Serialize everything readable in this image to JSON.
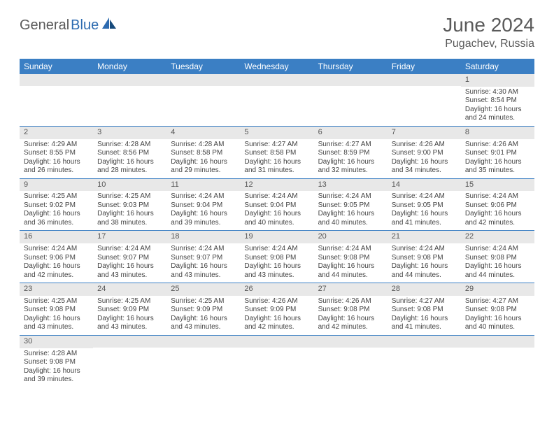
{
  "logo": {
    "text1": "General",
    "text2": "Blue"
  },
  "title": "June 2024",
  "location": "Pugachev, Russia",
  "colors": {
    "header_bg": "#3b7fc4",
    "header_text": "#ffffff",
    "daynum_bg": "#e8e8e8",
    "week_border": "#3b7fc4",
    "text": "#444444",
    "title_text": "#5a5a5a",
    "logo_blue": "#2d6bb0"
  },
  "dayNames": [
    "Sunday",
    "Monday",
    "Tuesday",
    "Wednesday",
    "Thursday",
    "Friday",
    "Saturday"
  ],
  "weeks": [
    [
      {
        "empty": true
      },
      {
        "empty": true
      },
      {
        "empty": true
      },
      {
        "empty": true
      },
      {
        "empty": true
      },
      {
        "empty": true
      },
      {
        "day": "1",
        "sunrise": "4:30 AM",
        "sunset": "8:54 PM",
        "daylight": "16 hours and 24 minutes."
      }
    ],
    [
      {
        "day": "2",
        "sunrise": "4:29 AM",
        "sunset": "8:55 PM",
        "daylight": "16 hours and 26 minutes."
      },
      {
        "day": "3",
        "sunrise": "4:28 AM",
        "sunset": "8:56 PM",
        "daylight": "16 hours and 28 minutes."
      },
      {
        "day": "4",
        "sunrise": "4:28 AM",
        "sunset": "8:58 PM",
        "daylight": "16 hours and 29 minutes."
      },
      {
        "day": "5",
        "sunrise": "4:27 AM",
        "sunset": "8:58 PM",
        "daylight": "16 hours and 31 minutes."
      },
      {
        "day": "6",
        "sunrise": "4:27 AM",
        "sunset": "8:59 PM",
        "daylight": "16 hours and 32 minutes."
      },
      {
        "day": "7",
        "sunrise": "4:26 AM",
        "sunset": "9:00 PM",
        "daylight": "16 hours and 34 minutes."
      },
      {
        "day": "8",
        "sunrise": "4:26 AM",
        "sunset": "9:01 PM",
        "daylight": "16 hours and 35 minutes."
      }
    ],
    [
      {
        "day": "9",
        "sunrise": "4:25 AM",
        "sunset": "9:02 PM",
        "daylight": "16 hours and 36 minutes."
      },
      {
        "day": "10",
        "sunrise": "4:25 AM",
        "sunset": "9:03 PM",
        "daylight": "16 hours and 38 minutes."
      },
      {
        "day": "11",
        "sunrise": "4:24 AM",
        "sunset": "9:04 PM",
        "daylight": "16 hours and 39 minutes."
      },
      {
        "day": "12",
        "sunrise": "4:24 AM",
        "sunset": "9:04 PM",
        "daylight": "16 hours and 40 minutes."
      },
      {
        "day": "13",
        "sunrise": "4:24 AM",
        "sunset": "9:05 PM",
        "daylight": "16 hours and 40 minutes."
      },
      {
        "day": "14",
        "sunrise": "4:24 AM",
        "sunset": "9:05 PM",
        "daylight": "16 hours and 41 minutes."
      },
      {
        "day": "15",
        "sunrise": "4:24 AM",
        "sunset": "9:06 PM",
        "daylight": "16 hours and 42 minutes."
      }
    ],
    [
      {
        "day": "16",
        "sunrise": "4:24 AM",
        "sunset": "9:06 PM",
        "daylight": "16 hours and 42 minutes."
      },
      {
        "day": "17",
        "sunrise": "4:24 AM",
        "sunset": "9:07 PM",
        "daylight": "16 hours and 43 minutes."
      },
      {
        "day": "18",
        "sunrise": "4:24 AM",
        "sunset": "9:07 PM",
        "daylight": "16 hours and 43 minutes."
      },
      {
        "day": "19",
        "sunrise": "4:24 AM",
        "sunset": "9:08 PM",
        "daylight": "16 hours and 43 minutes."
      },
      {
        "day": "20",
        "sunrise": "4:24 AM",
        "sunset": "9:08 PM",
        "daylight": "16 hours and 44 minutes."
      },
      {
        "day": "21",
        "sunrise": "4:24 AM",
        "sunset": "9:08 PM",
        "daylight": "16 hours and 44 minutes."
      },
      {
        "day": "22",
        "sunrise": "4:24 AM",
        "sunset": "9:08 PM",
        "daylight": "16 hours and 44 minutes."
      }
    ],
    [
      {
        "day": "23",
        "sunrise": "4:25 AM",
        "sunset": "9:08 PM",
        "daylight": "16 hours and 43 minutes."
      },
      {
        "day": "24",
        "sunrise": "4:25 AM",
        "sunset": "9:09 PM",
        "daylight": "16 hours and 43 minutes."
      },
      {
        "day": "25",
        "sunrise": "4:25 AM",
        "sunset": "9:09 PM",
        "daylight": "16 hours and 43 minutes."
      },
      {
        "day": "26",
        "sunrise": "4:26 AM",
        "sunset": "9:09 PM",
        "daylight": "16 hours and 42 minutes."
      },
      {
        "day": "27",
        "sunrise": "4:26 AM",
        "sunset": "9:08 PM",
        "daylight": "16 hours and 42 minutes."
      },
      {
        "day": "28",
        "sunrise": "4:27 AM",
        "sunset": "9:08 PM",
        "daylight": "16 hours and 41 minutes."
      },
      {
        "day": "29",
        "sunrise": "4:27 AM",
        "sunset": "9:08 PM",
        "daylight": "16 hours and 40 minutes."
      }
    ],
    [
      {
        "day": "30",
        "sunrise": "4:28 AM",
        "sunset": "9:08 PM",
        "daylight": "16 hours and 39 minutes."
      },
      {
        "empty": true
      },
      {
        "empty": true
      },
      {
        "empty": true
      },
      {
        "empty": true
      },
      {
        "empty": true
      },
      {
        "empty": true
      }
    ]
  ],
  "labels": {
    "sunrise_prefix": "Sunrise: ",
    "sunset_prefix": "Sunset: ",
    "daylight_prefix": "Daylight: "
  }
}
